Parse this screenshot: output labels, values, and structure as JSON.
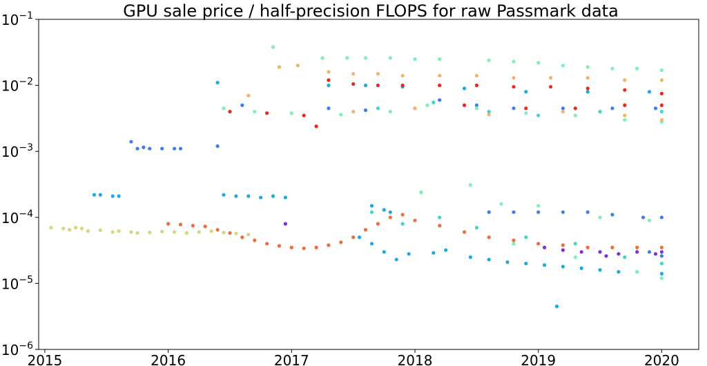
{
  "chart_data": {
    "type": "scatter",
    "title": "GPU sale price / half-precision FLOPS for raw Passmark data",
    "xlabel": "",
    "ylabel": "",
    "y_scale": "log",
    "ylim": [
      1e-06,
      0.1
    ],
    "xlim": [
      2014.95,
      2020.3
    ],
    "grid": false,
    "legend": "none",
    "x_ticks": [
      {
        "value": 2015,
        "label": "2015"
      },
      {
        "value": 2016,
        "label": "2016"
      },
      {
        "value": 2017,
        "label": "2017"
      },
      {
        "value": 2018,
        "label": "2018"
      },
      {
        "value": 2019,
        "label": "2019"
      },
      {
        "value": 2020,
        "label": "2020"
      }
    ],
    "y_ticks": [
      {
        "value": 1e-06,
        "base": "10",
        "exp": "−6"
      },
      {
        "value": 1e-05,
        "base": "10",
        "exp": "−5"
      },
      {
        "value": 0.0001,
        "base": "10",
        "exp": "−4"
      },
      {
        "value": 0.001,
        "base": "10",
        "exp": "−3"
      },
      {
        "value": 0.01,
        "base": "10",
        "exp": "−2"
      },
      {
        "value": 0.1,
        "base": "10",
        "exp": "−1"
      }
    ],
    "series": [
      {
        "color": "#d8d47e",
        "points": [
          [
            2015.05,
            7e-05
          ],
          [
            2015.15,
            6.8e-05
          ],
          [
            2015.2,
            6.5e-05
          ],
          [
            2015.25,
            7e-05
          ],
          [
            2015.3,
            6.8e-05
          ],
          [
            2015.35,
            6.2e-05
          ],
          [
            2015.45,
            6.4e-05
          ],
          [
            2015.55,
            6e-05
          ],
          [
            2015.6,
            6.2e-05
          ],
          [
            2015.7,
            6e-05
          ],
          [
            2015.75,
            5.8e-05
          ],
          [
            2015.85,
            5.9e-05
          ],
          [
            2015.95,
            6.1e-05
          ],
          [
            2016.05,
            6e-05
          ],
          [
            2016.15,
            5.8e-05
          ],
          [
            2016.25,
            6e-05
          ],
          [
            2016.35,
            6.2e-05
          ],
          [
            2016.45,
            5.9e-05
          ],
          [
            2016.55,
            5.7e-05
          ],
          [
            2016.65,
            5.5e-05
          ]
        ]
      },
      {
        "color": "#1eaae0",
        "points": [
          [
            2015.4,
            0.00022
          ],
          [
            2015.45,
            0.00022
          ],
          [
            2015.55,
            0.00021
          ],
          [
            2015.6,
            0.00021
          ],
          [
            2016.45,
            0.00022
          ],
          [
            2016.55,
            0.00021
          ],
          [
            2016.65,
            0.00021
          ],
          [
            2016.75,
            0.0002
          ],
          [
            2016.85,
            0.00021
          ],
          [
            2016.95,
            0.0002
          ],
          [
            2017.65,
            0.00015
          ],
          [
            2017.75,
            0.00013
          ],
          [
            2017.8,
            0.00012
          ],
          [
            2017.55,
            5e-05
          ],
          [
            2017.65,
            4e-05
          ],
          [
            2017.75,
            3e-05
          ],
          [
            2017.85,
            2.3e-05
          ],
          [
            2017.95,
            2.8e-05
          ],
          [
            2018.15,
            2.9e-05
          ],
          [
            2018.25,
            3.2e-05
          ],
          [
            2018.45,
            2.5e-05
          ],
          [
            2018.6,
            2.3e-05
          ],
          [
            2018.75,
            2.1e-05
          ],
          [
            2018.9,
            2e-05
          ],
          [
            2019.05,
            1.9e-05
          ],
          [
            2019.2,
            1.8e-05
          ],
          [
            2019.35,
            1.7e-05
          ],
          [
            2019.5,
            1.6e-05
          ],
          [
            2019.65,
            1.5e-05
          ],
          [
            2019.8,
            1.5e-05
          ],
          [
            2020.0,
            1.4e-05
          ],
          [
            2016.4,
            0.011
          ],
          [
            2017.3,
            0.01
          ],
          [
            2017.6,
            0.01
          ],
          [
            2017.9,
            0.0095
          ],
          [
            2018.4,
            0.009
          ],
          [
            2018.9,
            0.008
          ],
          [
            2019.4,
            0.008
          ],
          [
            2019.9,
            0.008
          ],
          [
            2019.15,
            4.5e-06
          ]
        ]
      },
      {
        "color": "#3a7ef0",
        "points": [
          [
            2015.7,
            0.0014
          ],
          [
            2015.8,
            0.00115
          ],
          [
            2015.85,
            0.0011
          ],
          [
            2015.95,
            0.0011
          ],
          [
            2016.05,
            0.0011
          ],
          [
            2016.1,
            0.0011
          ],
          [
            2016.4,
            0.0012
          ],
          [
            2015.75,
            0.0011
          ],
          [
            2016.6,
            0.005
          ],
          [
            2017.3,
            0.0045
          ],
          [
            2017.6,
            0.0042
          ],
          [
            2018.0,
            0.0045
          ],
          [
            2018.2,
            0.006
          ],
          [
            2018.5,
            0.005
          ],
          [
            2018.8,
            0.0045
          ],
          [
            2019.2,
            0.0045
          ],
          [
            2019.6,
            0.0045
          ],
          [
            2019.95,
            0.0045
          ],
          [
            2018.6,
            0.00012
          ],
          [
            2018.8,
            0.00012
          ],
          [
            2019.0,
            0.00012
          ],
          [
            2019.2,
            0.00012
          ],
          [
            2019.4,
            0.00012
          ],
          [
            2019.6,
            0.00011
          ],
          [
            2019.85,
            0.0001
          ],
          [
            2020.0,
            0.0001
          ],
          [
            2020.0,
            2.6e-05
          ],
          [
            2019.9,
            3e-05
          ]
        ]
      },
      {
        "color": "#ef6c3c",
        "points": [
          [
            2016.0,
            8e-05
          ],
          [
            2016.1,
            7.8e-05
          ],
          [
            2016.2,
            7.5e-05
          ],
          [
            2016.3,
            7.3e-05
          ],
          [
            2016.4,
            6.5e-05
          ],
          [
            2016.5,
            5.8e-05
          ],
          [
            2016.6,
            5e-05
          ],
          [
            2016.7,
            4.5e-05
          ],
          [
            2016.8,
            4e-05
          ],
          [
            2016.9,
            3.7e-05
          ],
          [
            2017.0,
            3.5e-05
          ],
          [
            2017.1,
            3.4e-05
          ],
          [
            2017.2,
            3.5e-05
          ],
          [
            2017.3,
            3.8e-05
          ],
          [
            2017.4,
            4.2e-05
          ],
          [
            2017.5,
            5e-05
          ],
          [
            2017.6,
            6.5e-05
          ],
          [
            2017.7,
            8e-05
          ],
          [
            2017.8,
            0.0001
          ],
          [
            2017.9,
            0.00011
          ],
          [
            2018.0,
            9e-05
          ],
          [
            2018.2,
            7.5e-05
          ],
          [
            2018.4,
            6e-05
          ],
          [
            2018.6,
            5e-05
          ],
          [
            2018.8,
            4.5e-05
          ],
          [
            2019.0,
            4e-05
          ],
          [
            2019.2,
            3.8e-05
          ],
          [
            2019.4,
            3.5e-05
          ],
          [
            2019.6,
            3.5e-05
          ],
          [
            2019.8,
            3.5e-05
          ],
          [
            2020.0,
            3.5e-05
          ]
        ]
      },
      {
        "color": "#7ff0b4",
        "points": [
          [
            2016.85,
            0.038
          ],
          [
            2017.25,
            0.026
          ],
          [
            2017.45,
            0.026
          ],
          [
            2017.6,
            0.026
          ],
          [
            2017.8,
            0.026
          ],
          [
            2018.0,
            0.025
          ],
          [
            2018.2,
            0.025
          ],
          [
            2018.6,
            0.024
          ],
          [
            2018.8,
            0.023
          ],
          [
            2019.0,
            0.022
          ],
          [
            2019.2,
            0.02
          ],
          [
            2019.4,
            0.019
          ],
          [
            2019.6,
            0.018
          ],
          [
            2019.8,
            0.018
          ],
          [
            2020.0,
            0.017
          ],
          [
            2016.45,
            0.0045
          ],
          [
            2016.7,
            0.004
          ],
          [
            2017.0,
            0.0038
          ],
          [
            2017.4,
            0.0036
          ],
          [
            2017.8,
            0.004
          ],
          [
            2018.1,
            0.005
          ],
          [
            2018.5,
            0.0045
          ],
          [
            2018.9,
            0.0038
          ],
          [
            2019.3,
            0.0035
          ],
          [
            2019.7,
            0.003
          ],
          [
            2020.0,
            0.0028
          ],
          [
            2018.05,
            0.00024
          ],
          [
            2018.45,
            0.00031
          ],
          [
            2018.7,
            0.00016
          ],
          [
            2019.0,
            0.00015
          ],
          [
            2019.5,
            0.0001
          ],
          [
            2019.9,
            9e-05
          ],
          [
            2018.8,
            4e-05
          ],
          [
            2019.3,
            2.5e-05
          ],
          [
            2019.8,
            1.5e-05
          ],
          [
            2020.0,
            1.2e-05
          ]
        ]
      },
      {
        "color": "#f0b46c",
        "points": [
          [
            2016.9,
            0.019
          ],
          [
            2017.05,
            0.02
          ],
          [
            2016.65,
            0.007
          ],
          [
            2017.3,
            0.016
          ],
          [
            2017.5,
            0.015
          ],
          [
            2017.7,
            0.015
          ],
          [
            2017.9,
            0.014
          ],
          [
            2018.2,
            0.014
          ],
          [
            2018.5,
            0.014
          ],
          [
            2018.8,
            0.013
          ],
          [
            2019.1,
            0.013
          ],
          [
            2019.4,
            0.013
          ],
          [
            2019.7,
            0.012
          ],
          [
            2020.0,
            0.012
          ],
          [
            2017.5,
            0.004
          ],
          [
            2018.0,
            0.0045
          ],
          [
            2018.6,
            0.0036
          ],
          [
            2019.2,
            0.004
          ],
          [
            2019.7,
            0.0035
          ],
          [
            2020.0,
            0.003
          ]
        ]
      },
      {
        "color": "#e8281e",
        "points": [
          [
            2016.5,
            0.004
          ],
          [
            2016.8,
            0.0038
          ],
          [
            2017.1,
            0.0035
          ],
          [
            2017.2,
            0.0024
          ],
          [
            2017.3,
            0.012
          ],
          [
            2017.5,
            0.0105
          ],
          [
            2017.7,
            0.01
          ],
          [
            2017.9,
            0.01
          ],
          [
            2018.2,
            0.01
          ],
          [
            2018.5,
            0.01
          ],
          [
            2018.8,
            0.0095
          ],
          [
            2019.1,
            0.0095
          ],
          [
            2019.4,
            0.009
          ],
          [
            2019.7,
            0.0085
          ],
          [
            2020.0,
            0.0075
          ],
          [
            2018.4,
            0.005
          ],
          [
            2018.9,
            0.0045
          ],
          [
            2019.3,
            0.0045
          ],
          [
            2019.7,
            0.005
          ],
          [
            2020.0,
            0.005
          ]
        ]
      },
      {
        "color": "#7a30e0",
        "points": [
          [
            2016.95,
            8e-05
          ],
          [
            2019.05,
            3.5e-05
          ],
          [
            2019.2,
            3.2e-05
          ],
          [
            2019.35,
            3e-05
          ],
          [
            2019.5,
            3e-05
          ],
          [
            2019.65,
            2.8e-05
          ],
          [
            2019.8,
            3e-05
          ],
          [
            2019.95,
            2.8e-05
          ],
          [
            2020.0,
            3e-05
          ],
          [
            2019.55,
            2.6e-05
          ]
        ]
      },
      {
        "color": "#45d4c4",
        "points": [
          [
            2017.65,
            0.00012
          ],
          [
            2017.9,
            8e-05
          ],
          [
            2018.2,
            0.0001
          ],
          [
            2018.5,
            7e-05
          ],
          [
            2018.9,
            5e-05
          ],
          [
            2019.3,
            4e-05
          ],
          [
            2019.7,
            2.5e-05
          ],
          [
            2020.0,
            2e-05
          ],
          [
            2017.7,
            0.0045
          ],
          [
            2018.15,
            0.0055
          ],
          [
            2018.6,
            0.004
          ],
          [
            2019.0,
            0.0035
          ],
          [
            2019.5,
            0.004
          ],
          [
            2020.0,
            0.004
          ]
        ]
      }
    ]
  }
}
